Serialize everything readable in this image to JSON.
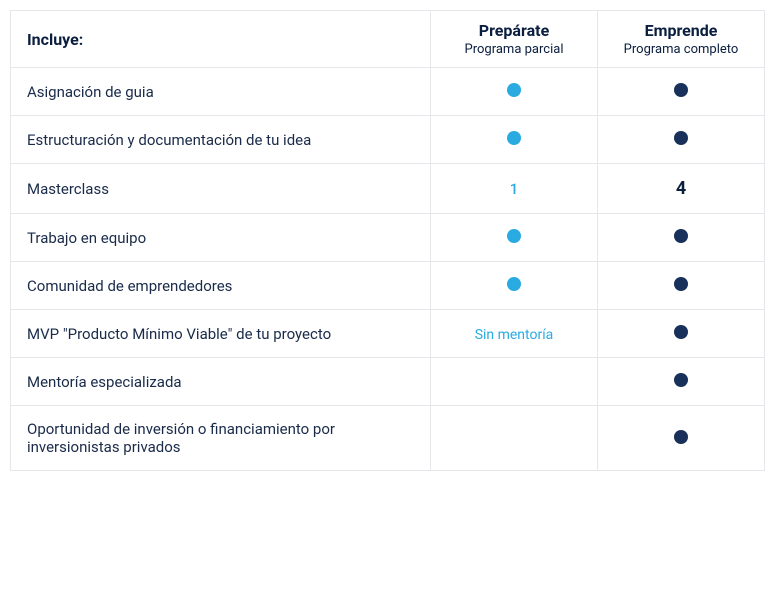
{
  "table": {
    "type": "table",
    "background_color": "#ffffff",
    "border_color": "#e5e7eb",
    "text_color": "#1a2b4a",
    "header_text_color": "#0a1e3f",
    "colors": {
      "light_blue": "#29abe2",
      "dark_navy": "#18305a"
    },
    "feature_column_width": 420,
    "plan_column_width": 167,
    "header": {
      "feature_label": "Incluye:",
      "plans": [
        {
          "title": "Prepárate",
          "subtitle": "Programa parcial"
        },
        {
          "title": "Emprende",
          "subtitle": "Programa completo"
        }
      ]
    },
    "rows": [
      {
        "feature": "Asignación de guia",
        "col1": {
          "type": "dot",
          "color": "#29abe2"
        },
        "col2": {
          "type": "dot",
          "color": "#18305a"
        }
      },
      {
        "feature": "Estructuración y documentación de tu idea",
        "col1": {
          "type": "dot",
          "color": "#29abe2"
        },
        "col2": {
          "type": "dot",
          "color": "#18305a"
        }
      },
      {
        "feature": "Masterclass",
        "col1": {
          "type": "number_light",
          "value": "1",
          "color": "#29abe2"
        },
        "col2": {
          "type": "number_dark",
          "value": "4",
          "color": "#0a1e3f"
        }
      },
      {
        "feature": "Trabajo en equipo",
        "col1": {
          "type": "dot",
          "color": "#29abe2"
        },
        "col2": {
          "type": "dot",
          "color": "#18305a"
        }
      },
      {
        "feature": "Comunidad de emprendedores",
        "col1": {
          "type": "dot",
          "color": "#29abe2"
        },
        "col2": {
          "type": "dot",
          "color": "#18305a"
        }
      },
      {
        "feature": "MVP \"Producto Mínimo Viable\" de tu proyecto",
        "col1": {
          "type": "text",
          "value": "Sin mentoría",
          "color": "#29abe2"
        },
        "col2": {
          "type": "dot",
          "color": "#18305a"
        }
      },
      {
        "feature": "Mentoría especializada",
        "col1": {
          "type": "empty"
        },
        "col2": {
          "type": "dot",
          "color": "#18305a"
        }
      },
      {
        "feature": "Oportunidad de inversión o financiamiento por inversionistas privados",
        "col1": {
          "type": "empty"
        },
        "col2": {
          "type": "dot",
          "color": "#18305a"
        }
      }
    ]
  }
}
